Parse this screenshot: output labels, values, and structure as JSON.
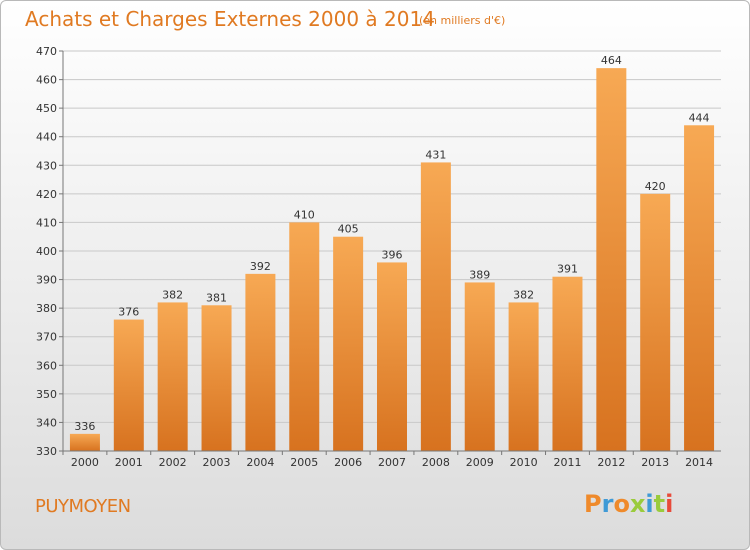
{
  "header": {
    "title": "Achats et Charges Externes 2000 à 2014",
    "subtitle": "(en milliers d'€)"
  },
  "footer": {
    "place": "PUYMOYEN",
    "logo": "Proxiti"
  },
  "colors": {
    "bar_top": "#f7a954",
    "bar_bottom": "#d7721f",
    "accent": "#e07a22",
    "logo_letters": [
      "#ef8a2b",
      "#3f9ad6",
      "#ef8a2b",
      "#9acb3c",
      "#3f9ad6",
      "#9acb3c",
      "#e84a3a"
    ]
  },
  "chart_data": {
    "type": "bar",
    "title": "Achats et Charges Externes 2000 à 2014",
    "subtitle": "(en milliers d'€)",
    "categories": [
      "2000",
      "2001",
      "2002",
      "2003",
      "2004",
      "2005",
      "2006",
      "2007",
      "2008",
      "2009",
      "2010",
      "2011",
      "2012",
      "2013",
      "2014"
    ],
    "values": [
      336,
      376,
      382,
      381,
      392,
      410,
      405,
      396,
      431,
      389,
      382,
      391,
      464,
      420,
      444
    ],
    "ylim": [
      330,
      470
    ],
    "yticks": [
      330,
      340,
      350,
      360,
      370,
      380,
      390,
      400,
      410,
      420,
      430,
      440,
      450,
      460,
      470
    ],
    "grid": true,
    "legend": "none"
  }
}
